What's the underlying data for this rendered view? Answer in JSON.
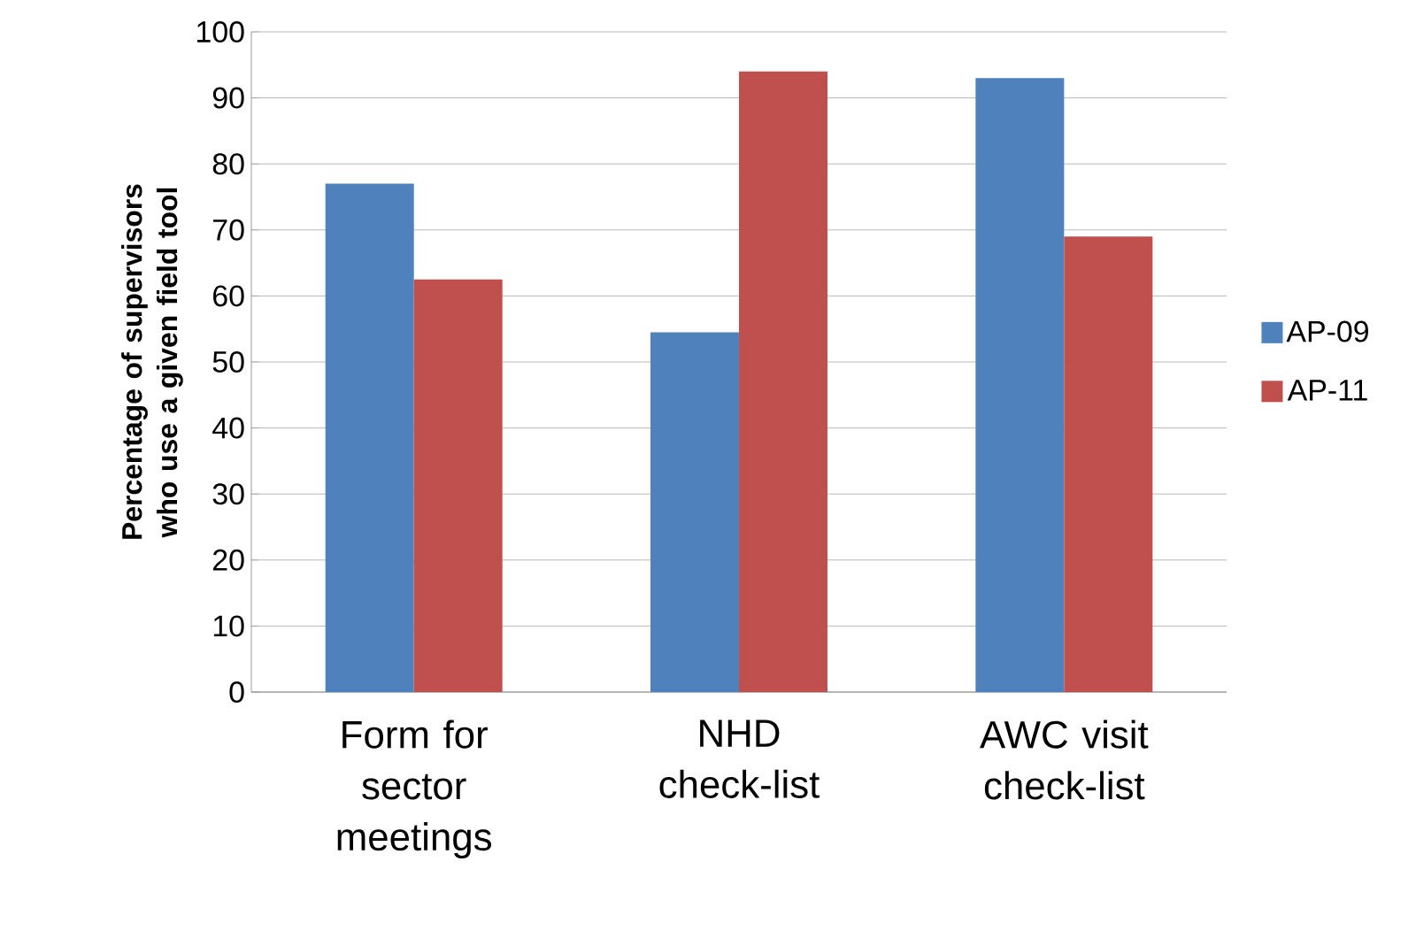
{
  "chart_data": {
    "type": "bar",
    "ylabel": "Percentage of supervisors who use a given field tool",
    "categories": [
      "Form for sector meetings",
      "NHD check-list",
      "AWC visit check-list"
    ],
    "series": [
      {
        "name": "AP-09",
        "color": "#4f81bd",
        "values": [
          77,
          54.5,
          93
        ]
      },
      {
        "name": "AP-11",
        "color": "#c0504d",
        "values": [
          62.5,
          94,
          69
        ]
      }
    ],
    "ylim": [
      0,
      100
    ],
    "yticks": [
      0,
      10,
      20,
      30,
      40,
      50,
      60,
      70,
      80,
      90,
      100
    ],
    "grid": "y",
    "legend": "right"
  }
}
